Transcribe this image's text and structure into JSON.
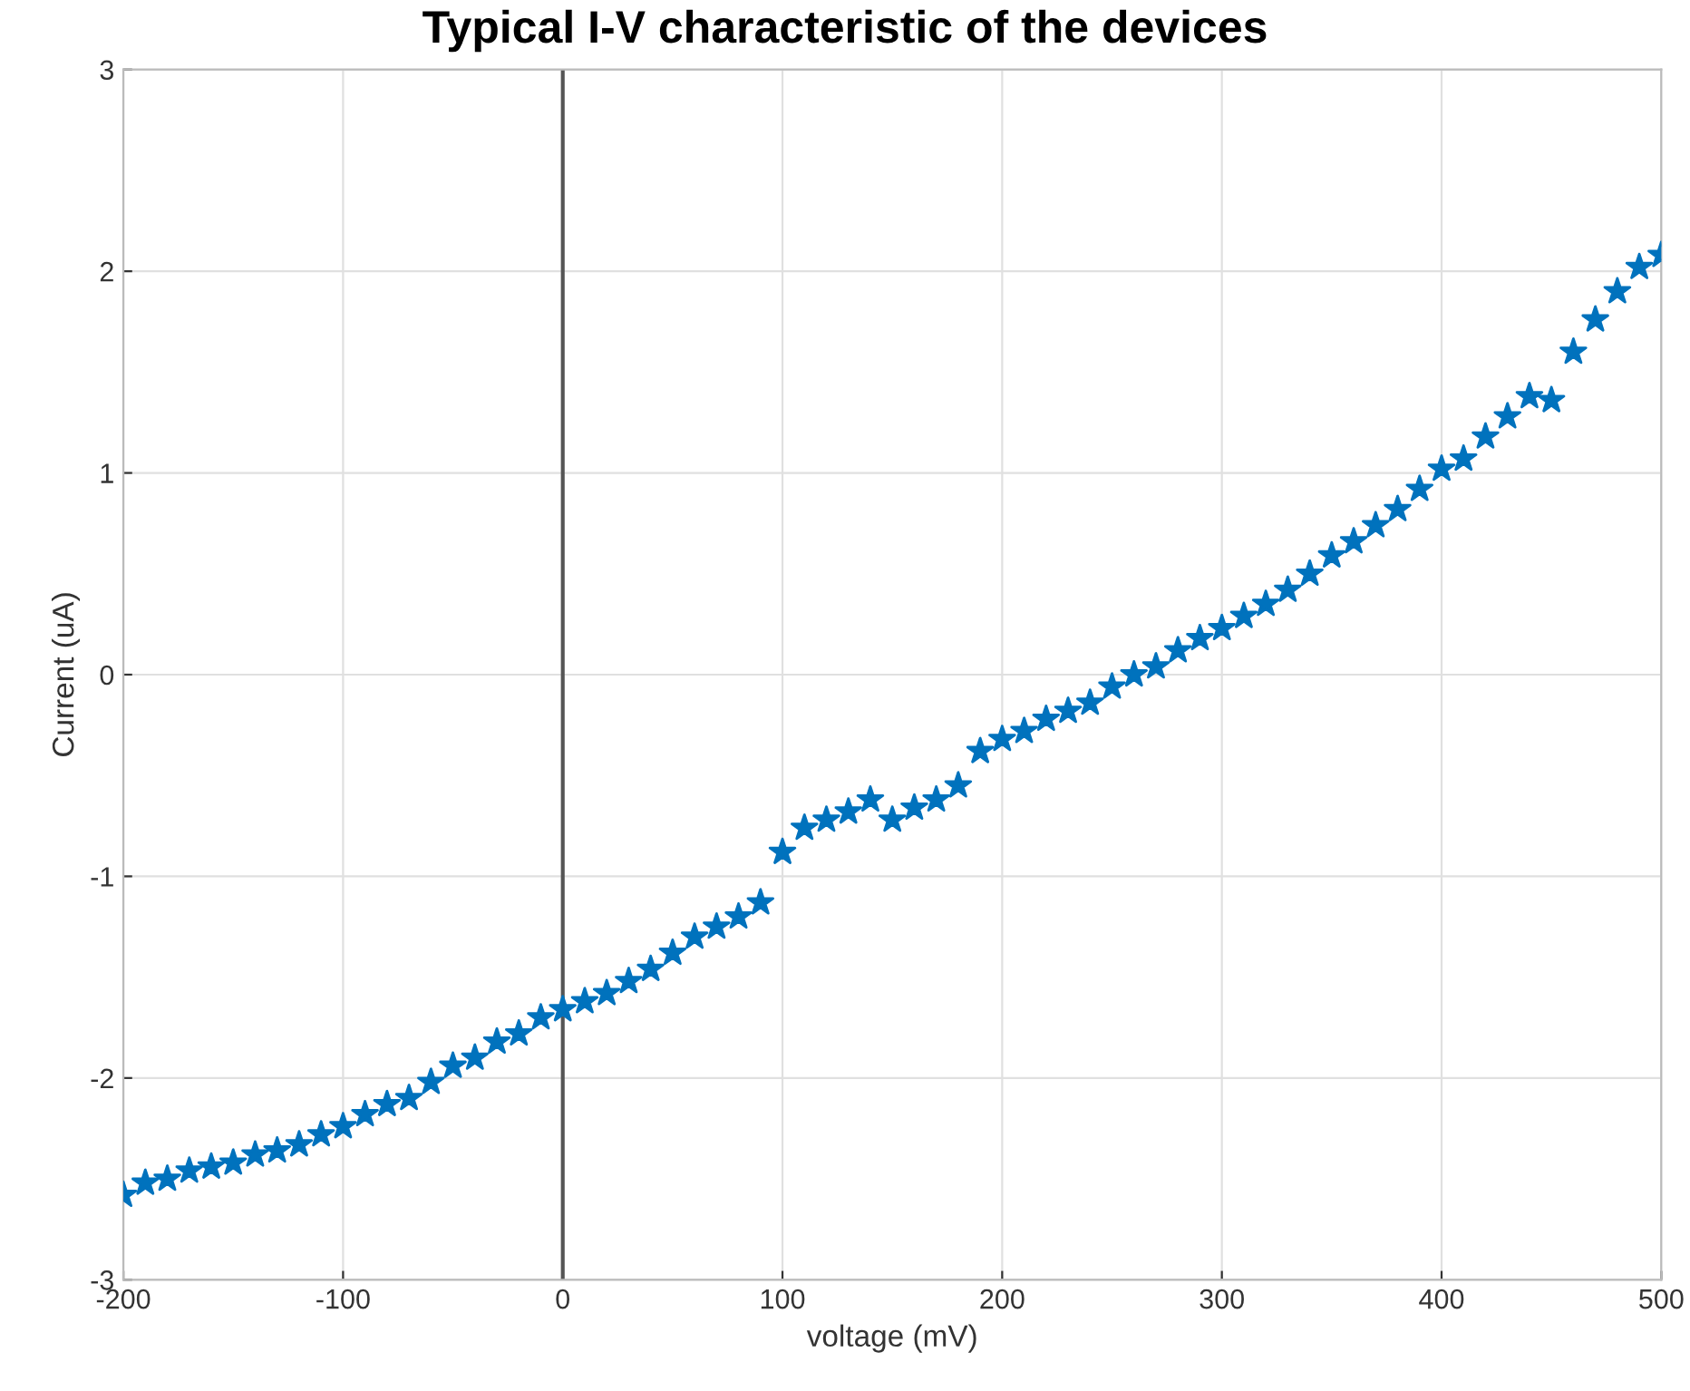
{
  "chart_data": {
    "type": "scatter",
    "title": "Typical I-V characteristic of the devices",
    "xlabel": "voltage (mV)",
    "ylabel": "Current (uA)",
    "x": [
      -200,
      -190,
      -180,
      -170,
      -160,
      -150,
      -140,
      -130,
      -120,
      -110,
      -100,
      -90,
      -80,
      -70,
      -60,
      -50,
      -40,
      -30,
      -20,
      -10,
      0,
      10,
      20,
      30,
      40,
      50,
      60,
      70,
      80,
      90,
      100,
      110,
      120,
      130,
      140,
      150,
      160,
      170,
      180,
      190,
      200,
      210,
      220,
      230,
      240,
      250,
      260,
      270,
      280,
      290,
      300,
      310,
      320,
      330,
      340,
      350,
      360,
      370,
      380,
      390,
      400,
      410,
      420,
      430,
      440,
      450,
      460,
      470,
      480,
      490,
      500
    ],
    "series": [
      {
        "color": "#0072bd",
        "values": [
          -2.58,
          -2.52,
          -2.5,
          -2.46,
          -2.44,
          -2.42,
          -2.38,
          -2.36,
          -2.33,
          -2.28,
          -2.24,
          -2.18,
          -2.13,
          -2.1,
          -2.02,
          -1.94,
          -1.9,
          -1.82,
          -1.78,
          -1.7,
          -1.66,
          -1.62,
          -1.58,
          -1.52,
          -1.46,
          -1.38,
          -1.3,
          -1.25,
          -1.2,
          -1.13,
          -0.88,
          -0.76,
          -0.72,
          -0.68,
          -0.62,
          -0.72,
          -0.66,
          -0.62,
          -0.55,
          -0.38,
          -0.32,
          -0.28,
          -0.22,
          -0.18,
          -0.14,
          -0.06,
          0.0,
          0.04,
          0.12,
          0.18,
          0.23,
          0.29,
          0.35,
          0.42,
          0.5,
          0.59,
          0.66,
          0.74,
          0.82,
          0.92,
          1.02,
          1.07,
          1.18,
          1.28,
          1.38,
          1.36,
          1.6,
          1.76,
          1.9,
          2.02,
          2.08
        ]
      }
    ],
    "xlim": [
      -200,
      500
    ],
    "xticks": [
      -200,
      -100,
      0,
      100,
      200,
      300,
      400,
      500
    ],
    "ylim": [
      -3,
      3
    ],
    "yticks": [
      -3,
      -2,
      -1,
      0,
      1,
      2,
      3
    ],
    "grid": true,
    "marker": "star",
    "ref_lines": [
      {
        "axis": "x",
        "value": 0,
        "color": "#555555"
      }
    ]
  }
}
